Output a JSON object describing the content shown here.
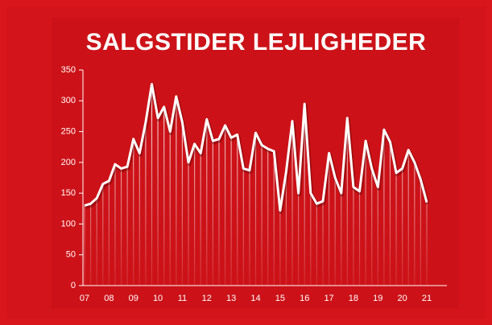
{
  "chart_data": {
    "type": "line",
    "title": "SALGSTIDER LEJLIGHEDER",
    "categories": [
      "07",
      null,
      null,
      null,
      "08",
      null,
      null,
      null,
      "09",
      null,
      null,
      null,
      "10",
      null,
      null,
      null,
      "11",
      null,
      null,
      null,
      "12",
      null,
      null,
      null,
      "13",
      null,
      null,
      null,
      "14",
      null,
      null,
      null,
      "15",
      null,
      null,
      null,
      "16",
      null,
      null,
      null,
      "17",
      null,
      null,
      null,
      "18",
      null,
      null,
      null,
      "19",
      null,
      null,
      null,
      "20",
      null,
      null,
      null,
      "21"
    ],
    "series": [
      {
        "color": "#ffffff",
        "values": [
          130,
          133,
          142,
          165,
          170,
          197,
          190,
          193,
          238,
          215,
          265,
          327,
          272,
          290,
          250,
          307,
          265,
          200,
          230,
          215,
          270,
          235,
          238,
          260,
          240,
          245,
          190,
          187,
          248,
          228,
          222,
          218,
          122,
          185,
          267,
          150,
          295,
          150,
          133,
          137,
          215,
          175,
          150,
          272,
          160,
          153,
          235,
          190,
          160,
          253,
          233,
          183,
          190,
          220,
          200,
          172,
          135
        ]
      }
    ],
    "ylim": [
      0,
      350
    ],
    "yticks": [
      0,
      50,
      100,
      150,
      200,
      250,
      300,
      350
    ],
    "grid": false
  }
}
